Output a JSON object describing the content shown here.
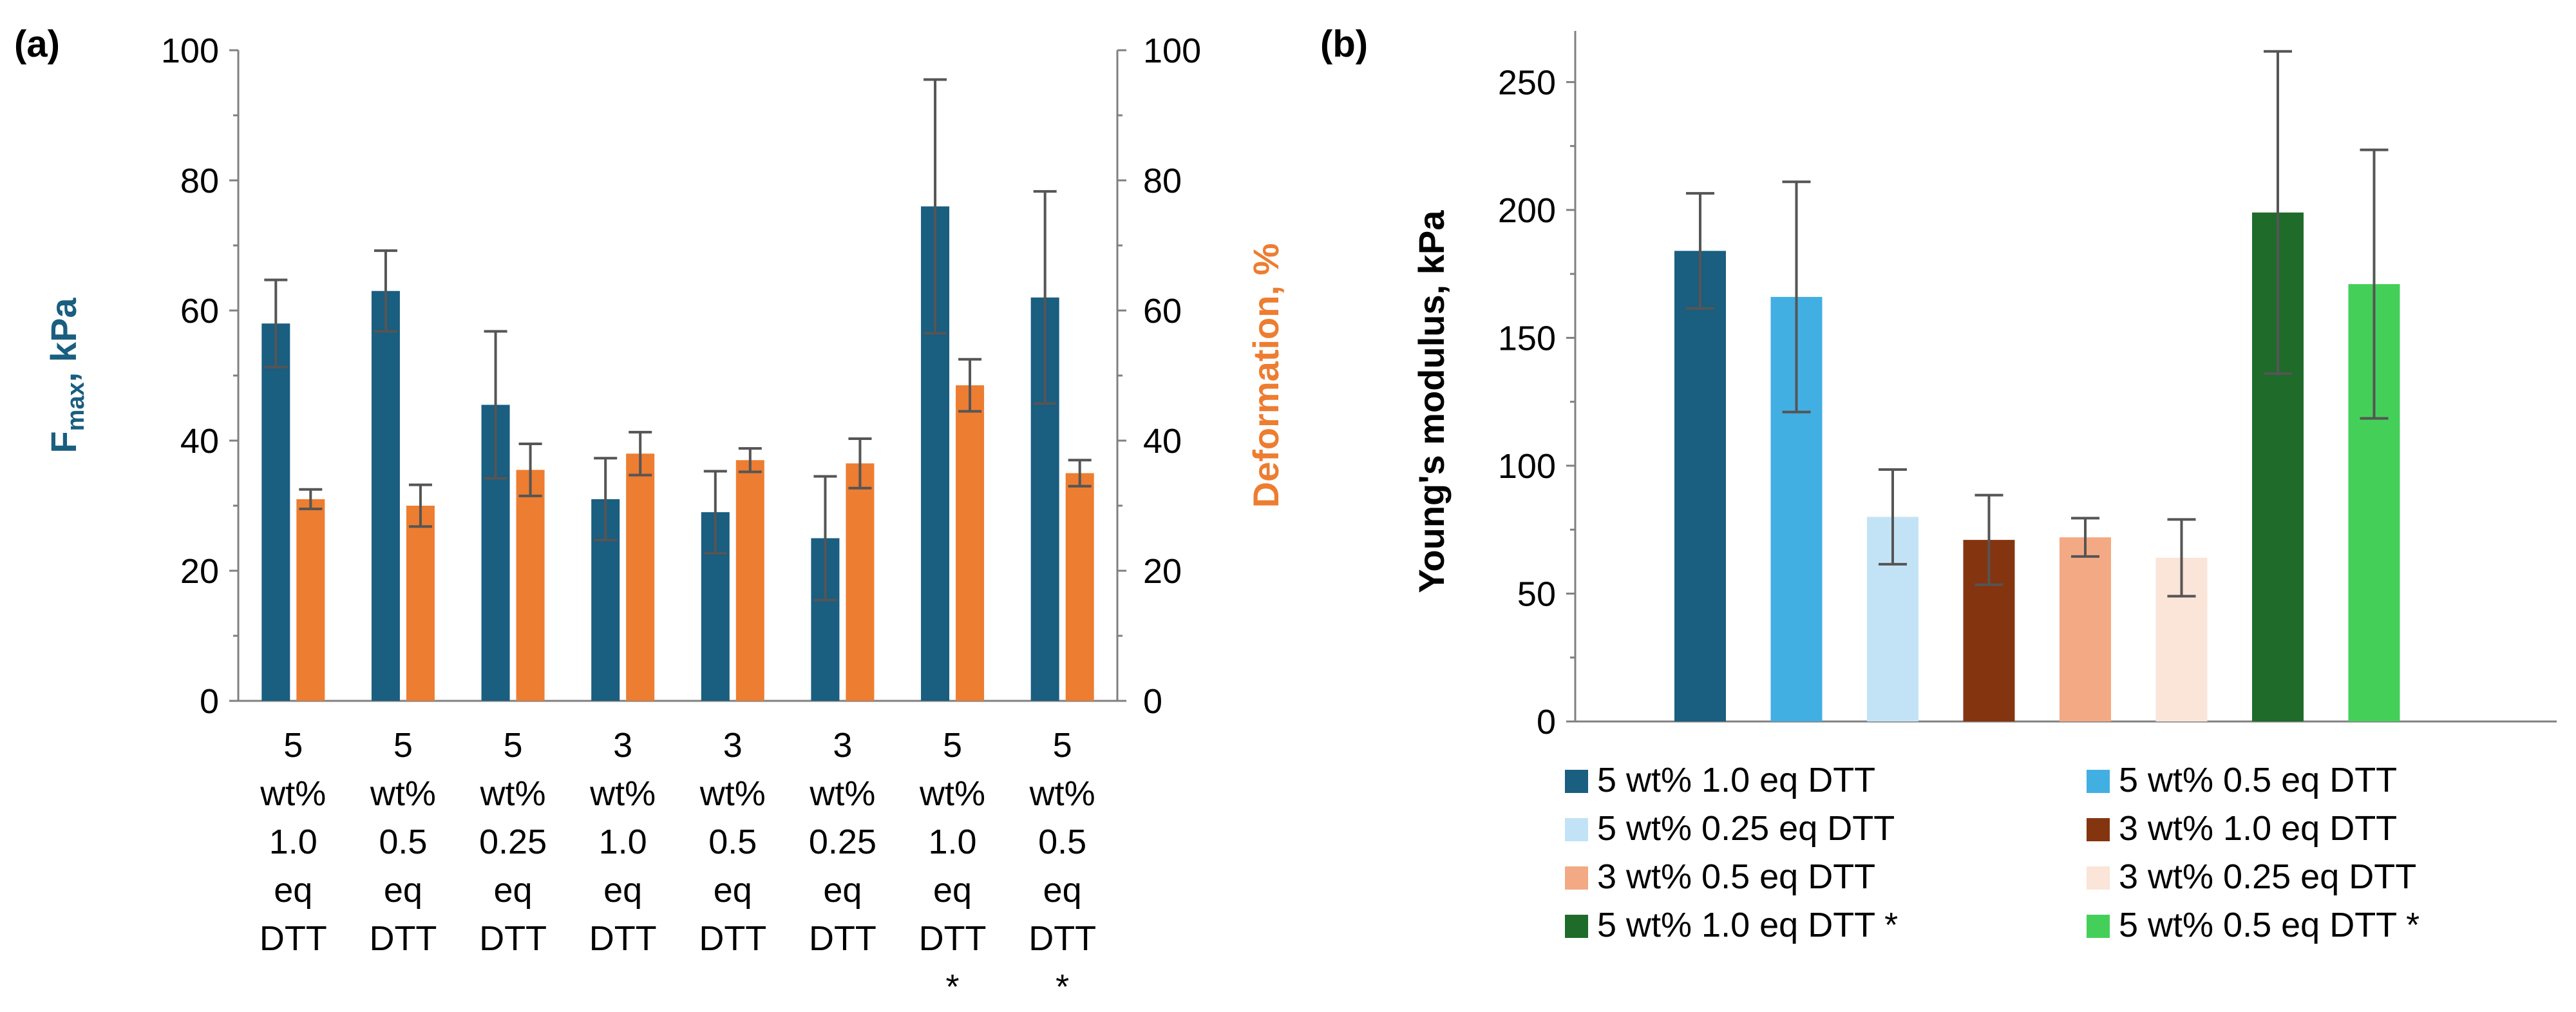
{
  "chart_data": [
    {
      "panel": "(a)",
      "type": "bar",
      "categories": [
        [
          "5",
          "wt%",
          "1.0",
          "eq",
          "DTT"
        ],
        [
          "5",
          "wt%",
          "0.5",
          "eq",
          "DTT"
        ],
        [
          "5",
          "wt%",
          "0.25",
          "eq",
          "DTT"
        ],
        [
          "3",
          "wt%",
          "1.0",
          "eq",
          "DTT"
        ],
        [
          "3",
          "wt%",
          "0.5",
          "eq",
          "DTT"
        ],
        [
          "3",
          "wt%",
          "0.25",
          "eq",
          "DTT"
        ],
        [
          "5",
          "wt%",
          "1.0",
          "eq",
          "DTT",
          "*"
        ],
        [
          "5",
          "wt%",
          "0.5",
          "eq",
          "DTT",
          "*"
        ]
      ],
      "series": [
        {
          "name": "Fmax, kPa",
          "axis": "left",
          "color": "#1A5E80",
          "values": [
            58,
            63,
            45.5,
            31,
            29,
            25,
            76,
            62
          ],
          "errors": [
            6.7,
            6.2,
            11.3,
            6.3,
            6.3,
            9.5,
            19.5,
            16.3
          ]
        },
        {
          "name": "Deformation, %",
          "axis": "right",
          "color": "#ED7D31",
          "values": [
            31,
            30,
            35.5,
            38,
            37,
            36.5,
            48.5,
            35
          ],
          "errors": [
            1.5,
            3.2,
            4,
            3.3,
            1.8,
            3.8,
            4,
            2
          ]
        }
      ],
      "ylabel_left_main": "F",
      "ylabel_left_sub": "max",
      "ylabel_left_rest": ", kPa",
      "ylabel_right": "Deformation, %",
      "ylim_left": [
        0,
        100
      ],
      "ylim_right": [
        0,
        100
      ],
      "yticks_left": [
        0,
        20,
        40,
        60,
        80,
        100
      ],
      "yticks_right": [
        0,
        20,
        40,
        60,
        80,
        100
      ],
      "grid": false
    },
    {
      "panel": "(b)",
      "type": "bar",
      "ylabel": "Young's modulus, kPa",
      "ylim": [
        0,
        270
      ],
      "yticks": [
        0,
        50,
        100,
        150,
        200,
        250
      ],
      "grid": false,
      "legend_position": "bottom",
      "bars": [
        {
          "label": "5 wt% 1.0 eq DTT",
          "value": 184,
          "error": 22.5,
          "color": "#1A5E80"
        },
        {
          "label": "5 wt% 0.5 eq DTT",
          "value": 166,
          "error": 45,
          "color": "#42AFE3"
        },
        {
          "label": "5 wt% 0.25 eq DTT",
          "value": 80,
          "error": 18.5,
          "color": "#C2E3F5"
        },
        {
          "label": "3 wt% 1.0 eq DTT",
          "value": 71,
          "error": 17.5,
          "color": "#843510"
        },
        {
          "label": "3 wt% 0.5 eq DTT",
          "value": 72,
          "error": 7.5,
          "color": "#F3AA84"
        },
        {
          "label": "3 wt% 0.25 eq DTT",
          "value": 64,
          "error": 15,
          "color": "#FBE4D8"
        },
        {
          "label": "5 wt% 1.0 eq DTT *",
          "value": 199,
          "error": 63,
          "color": "#1E6B2A"
        },
        {
          "label": "5 wt% 0.5 eq DTT *",
          "value": 171,
          "error": 52.5,
          "color": "#44D058"
        }
      ]
    }
  ]
}
